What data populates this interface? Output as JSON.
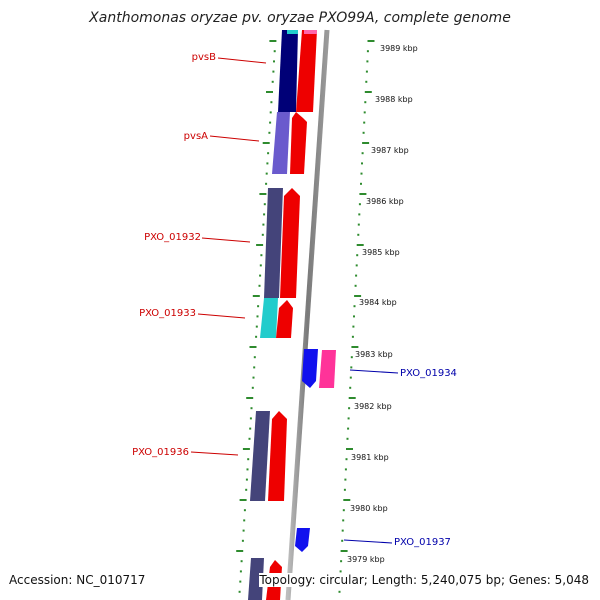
{
  "title": "Xanthomonas oryzae pv. oryzae PXO99A, complete genome",
  "footer": {
    "accession": "Accession: NC_010717",
    "topology": "Topology: circular; Length: 5,240,075 bp; Genes: 5,048"
  },
  "kbp_labels": [
    "3989 kbp",
    "3988 kbp",
    "3987 kbp",
    "3986 kbp",
    "3985 kbp",
    "3984 kbp",
    "3983 kbp",
    "3982 kbp",
    "3981 kbp",
    "3980 kbp",
    "3979 kbp"
  ],
  "gene_labels": [
    {
      "text": "pvsB",
      "strand": "reverse"
    },
    {
      "text": "pvsA",
      "strand": "reverse"
    },
    {
      "text": "PXO_01932",
      "strand": "reverse"
    },
    {
      "text": "PXO_01933",
      "strand": "reverse"
    },
    {
      "text": "PXO_01934",
      "strand": "forward"
    },
    {
      "text": "PXO_01936",
      "strand": "reverse"
    },
    {
      "text": "PXO_01937",
      "strand": "forward"
    }
  ],
  "colors": {
    "backbone": "#8a8a8a",
    "tick_green": "#2e8b2e",
    "reverse_label": "#cc0000",
    "forward_label": "#0000aa",
    "cds": "#ee0000",
    "gene_navy": "#000077",
    "gene_slate": "#44447a",
    "gene_violet": "#6a5acd",
    "gene_cyan": "#22cccc",
    "gene_blue": "#1111ee",
    "gene_pink": "#ff3399"
  }
}
